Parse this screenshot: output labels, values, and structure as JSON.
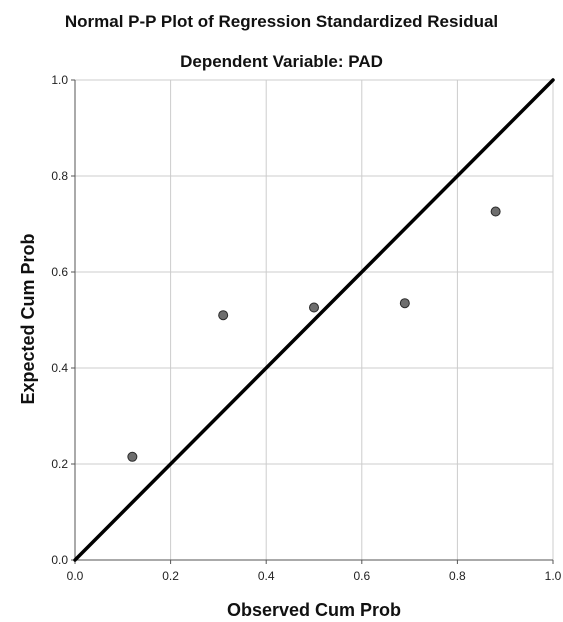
{
  "chart_data": {
    "type": "scatter",
    "title": "Normal P-P Plot of Regression Standardized Residual",
    "subtitle": "Dependent Variable: PAD",
    "xlabel": "Observed Cum Prob",
    "ylabel": "Expected Cum Prob",
    "xlim": [
      0.0,
      1.0
    ],
    "ylim": [
      0.0,
      1.0
    ],
    "xticks": [
      "0.0",
      "0.2",
      "0.4",
      "0.6",
      "0.8",
      "1.0"
    ],
    "yticks": [
      "0.0",
      "0.2",
      "0.4",
      "0.6",
      "0.8",
      "1.0"
    ],
    "grid": true,
    "reference_line": {
      "x": [
        0.0,
        1.0
      ],
      "y": [
        0.0,
        1.0
      ]
    },
    "points": [
      {
        "x": 0.12,
        "y": 0.215
      },
      {
        "x": 0.31,
        "y": 0.51
      },
      {
        "x": 0.5,
        "y": 0.526
      },
      {
        "x": 0.69,
        "y": 0.535
      },
      {
        "x": 0.88,
        "y": 0.726
      }
    ],
    "colors": {
      "point_fill": "#6e6e6e",
      "point_stroke": "#2a2a2a",
      "line": "#000000",
      "grid": "#cccccc",
      "axis": "#555555"
    }
  }
}
